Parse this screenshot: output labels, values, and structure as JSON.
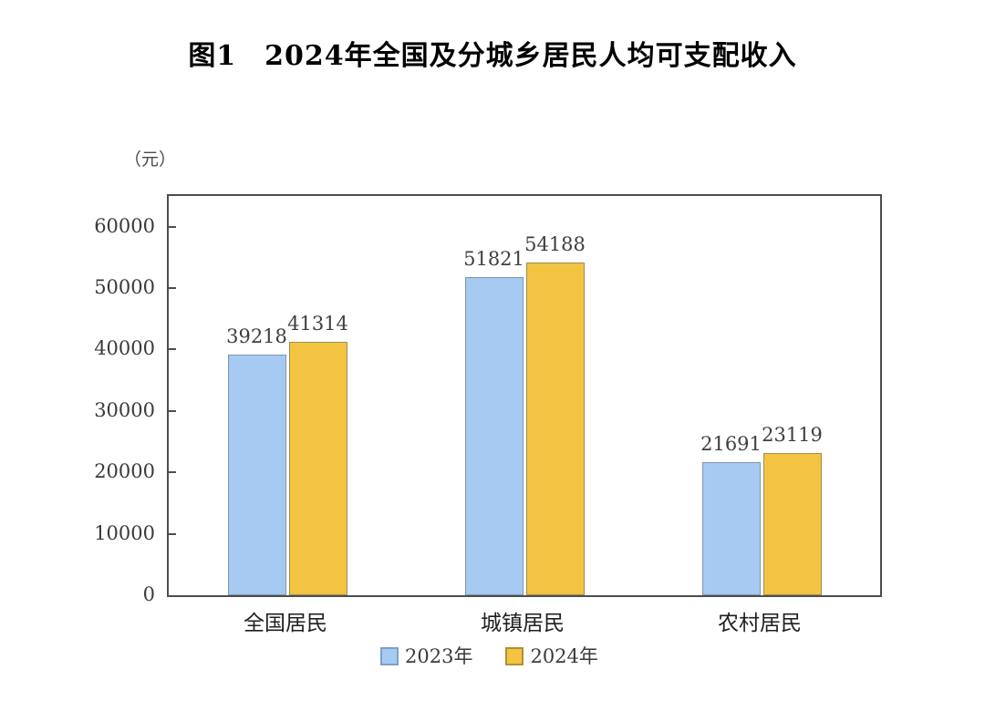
{
  "title": "图1　2024年全国及分城乡居民人均可支配收入",
  "chart_data": {
    "type": "bar",
    "title": "图1　2024年全国及分城乡居民人均可支配收入",
    "unit_label": "（元）",
    "xlabel": "",
    "ylabel": "（元）",
    "categories": [
      "全国居民",
      "城镇居民",
      "农村居民"
    ],
    "series": [
      {
        "name": "2023年",
        "values": [
          39218,
          51821,
          21691
        ],
        "fill": "#A6CAF2",
        "bar_border": "#8196A9",
        "legend_border": "#7E9FCC"
      },
      {
        "name": "2024年",
        "values": [
          41314,
          54188,
          23119
        ],
        "fill": "#F3C342",
        "bar_border": "#9C8F56",
        "legend_border": "#B3912F"
      }
    ],
    "ylim": [
      0,
      65000
    ],
    "yticks": [
      0,
      10000,
      20000,
      30000,
      40000,
      50000,
      60000
    ],
    "grid": false,
    "legend_position": "bottom",
    "frame_color": "#4d4d4d"
  }
}
